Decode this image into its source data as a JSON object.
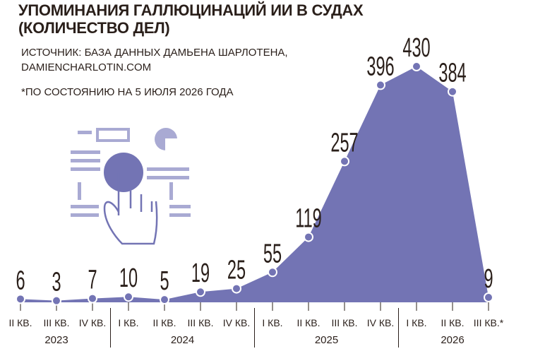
{
  "chart_data": {
    "type": "area",
    "title": "УПОМИНАНИЯ ГАЛЛЮЦИНАЦИЙ ИИ В СУДАХ (КОЛИЧЕСТВО ДЕЛ)",
    "source": "ИСТОЧНИК: БАЗА ДАННЫХ ДАМЬЕНА ШАРЛОТЕНА, DAMIENCHARLOTIN.COM",
    "note": "*ПО СОСТОЯНИЮ НА 5 ИЮЛЯ 2026 ГОДА",
    "categories": [
      "II КВ.",
      "III КВ.",
      "IV КВ.",
      "I КВ.",
      "II КВ.",
      "III КВ.",
      "IV КВ.",
      "I КВ.",
      "II КВ.",
      "III КВ.",
      "IV КВ.",
      "I КВ.",
      "II КВ.",
      "III КВ.*"
    ],
    "values": [
      6,
      3,
      7,
      10,
      5,
      19,
      25,
      55,
      119,
      257,
      396,
      430,
      384,
      9
    ],
    "groups": [
      {
        "label": "2023",
        "count": 3
      },
      {
        "label": "2024",
        "count": 4
      },
      {
        "label": "2025",
        "count": 4
      },
      {
        "label": "2026",
        "count": 3
      }
    ],
    "color": "#7374b4",
    "ylim": [
      0,
      430
    ]
  }
}
